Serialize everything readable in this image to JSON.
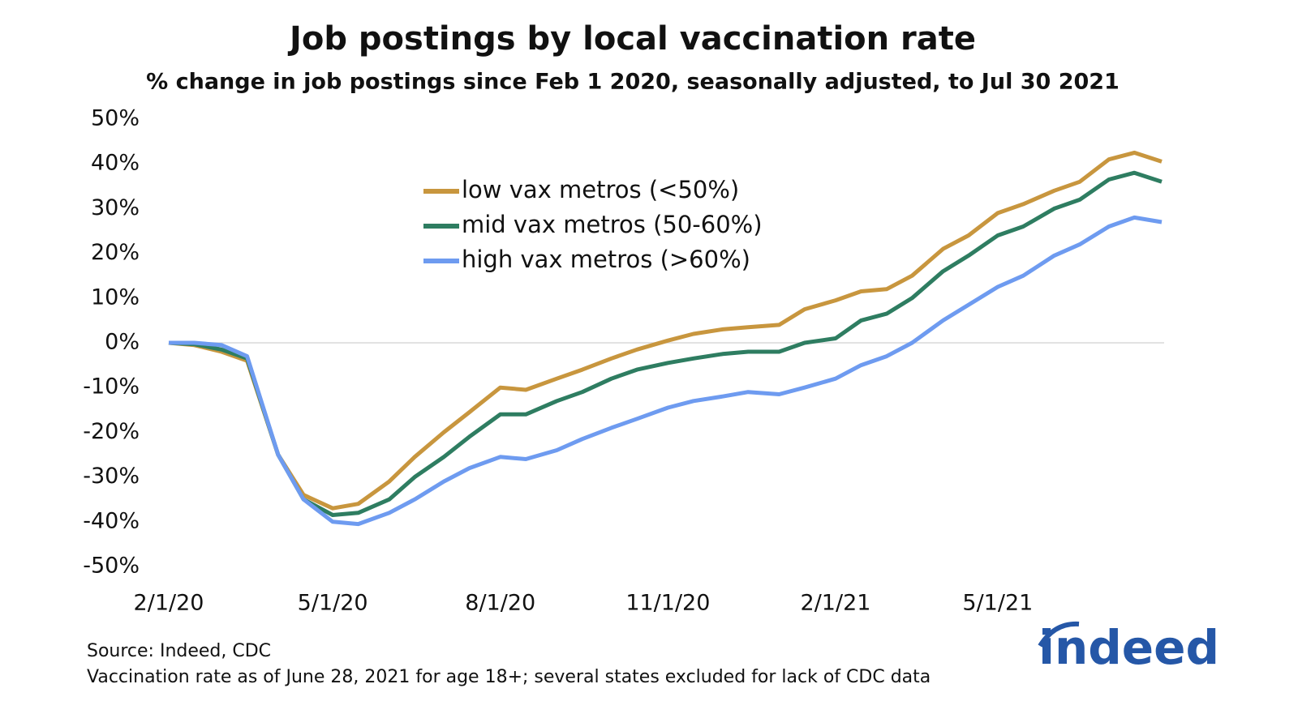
{
  "chart_data": {
    "type": "line",
    "title": "Job postings by local vaccination rate",
    "subtitle": "% change in job postings since Feb 1 2020, seasonally adjusted, to Jul 30 2021",
    "notes": [
      "Source: Indeed, CDC",
      "Vaccination rate as of June 28, 2021 for age 18+; several states excluded for lack of CDC data"
    ],
    "logo": "indeed",
    "x": [
      "2020-02-01",
      "2020-02-15",
      "2020-03-01",
      "2020-03-15",
      "2020-04-01",
      "2020-04-15",
      "2020-05-01",
      "2020-05-15",
      "2020-06-01",
      "2020-06-15",
      "2020-07-01",
      "2020-07-15",
      "2020-08-01",
      "2020-08-15",
      "2020-09-01",
      "2020-09-15",
      "2020-10-01",
      "2020-10-15",
      "2020-11-01",
      "2020-11-15",
      "2020-12-01",
      "2020-12-15",
      "2021-01-01",
      "2021-01-15",
      "2021-02-01",
      "2021-02-15",
      "2021-03-01",
      "2021-03-15",
      "2021-04-01",
      "2021-04-15",
      "2021-05-01",
      "2021-05-15",
      "2021-06-01",
      "2021-06-15",
      "2021-07-01",
      "2021-07-15",
      "2021-07-30"
    ],
    "series": [
      {
        "name": "low vax metros (<50%)",
        "color": "#c8963e",
        "values": [
          0,
          -0.5,
          -2,
          -4,
          -25,
          -34,
          -37,
          -36,
          -31,
          -25.5,
          -20,
          -15.5,
          -10,
          -10.5,
          -8,
          -6,
          -3.5,
          -1.5,
          0.5,
          2,
          3,
          3.5,
          4,
          7.5,
          9.5,
          11.5,
          12,
          15,
          21,
          24,
          29,
          31,
          34,
          36,
          41,
          42.5,
          40.5
        ]
      },
      {
        "name": "mid vax metros (50-60%)",
        "color": "#2e7d61",
        "values": [
          0,
          -0.3,
          -1.5,
          -3.5,
          -25,
          -35,
          -38.5,
          -38,
          -35,
          -30,
          -25.5,
          -21,
          -16,
          -16,
          -13,
          -11,
          -8,
          -6,
          -4.5,
          -3.5,
          -2.5,
          -2,
          -2,
          0,
          1,
          5,
          6.5,
          10,
          16,
          19.5,
          24,
          26,
          30,
          32,
          36.5,
          38,
          36
        ]
      },
      {
        "name": "high vax metros (>60%)",
        "color": "#6e9bf0",
        "values": [
          0,
          0,
          -0.5,
          -3,
          -25,
          -35,
          -40,
          -40.5,
          -38,
          -35,
          -31,
          -28,
          -25.5,
          -26,
          -24,
          -21.5,
          -19,
          -17,
          -14.5,
          -13,
          -12,
          -11,
          -11.5,
          -10,
          -8,
          -5,
          -3,
          0,
          5,
          8.5,
          12.5,
          15,
          19.5,
          22,
          26,
          28,
          27
        ]
      }
    ],
    "xticks": [
      {
        "value": "2020-02-01",
        "label": "2/1/20"
      },
      {
        "value": "2020-05-01",
        "label": "5/1/20"
      },
      {
        "value": "2020-08-01",
        "label": "8/1/20"
      },
      {
        "value": "2020-11-01",
        "label": "11/1/20"
      },
      {
        "value": "2021-02-01",
        "label": "2/1/21"
      },
      {
        "value": "2021-05-01",
        "label": "5/1/21"
      }
    ],
    "ylim": [
      -50,
      50
    ],
    "yticks": [
      {
        "value": 50,
        "label": "50%"
      },
      {
        "value": 40,
        "label": "40%"
      },
      {
        "value": 30,
        "label": "30%"
      },
      {
        "value": 20,
        "label": "20%"
      },
      {
        "value": 10,
        "label": "10%"
      },
      {
        "value": 0,
        "label": "0%"
      },
      {
        "value": -10,
        "label": "-10%"
      },
      {
        "value": -20,
        "label": "-20%"
      },
      {
        "value": -30,
        "label": "-30%"
      },
      {
        "value": -40,
        "label": "-40%"
      },
      {
        "value": -50,
        "label": "-50%"
      }
    ],
    "legend": "top-center"
  }
}
